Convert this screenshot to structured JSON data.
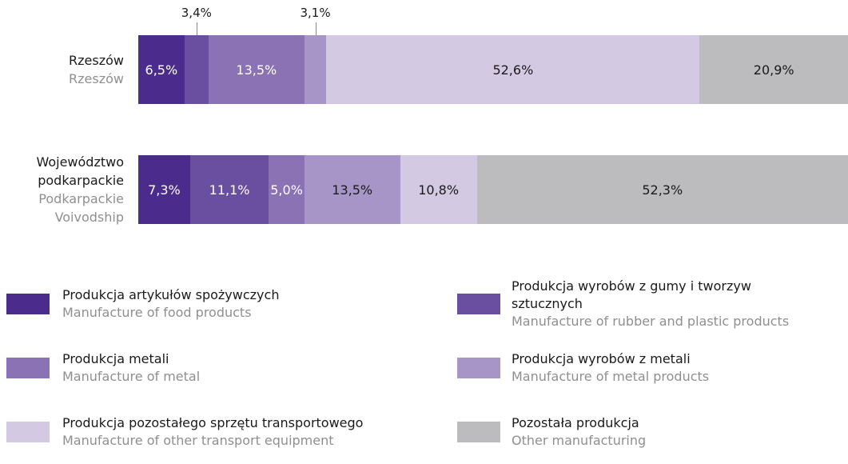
{
  "chart_data": {
    "type": "stacked_bar_horizontal",
    "categories": [
      "Rzeszów",
      "Województwo podkarpackie"
    ],
    "categories_en": [
      "Rzeszów",
      "Podkarpackie Voivodship"
    ],
    "xlim": [
      0,
      100
    ],
    "series": [
      {
        "name": "Produkcja artykułów spożywczych",
        "name_en": "Manufacture of food products",
        "color": "#4b2c8c",
        "values": [
          6.5,
          7.3
        ],
        "value_labels": [
          "6,5%",
          "7,3%"
        ]
      },
      {
        "name": "Produkcja wyrobów z gumy i tworzyw sztucznych",
        "name_en": "Manufacture of rubber and plastic products",
        "color": "#6a4fa0",
        "values": [
          3.4,
          11.1
        ],
        "value_labels": [
          "3,4%",
          "11,1%"
        ]
      },
      {
        "name": "Produkcja metali",
        "name_en": "Manufacture of metal",
        "color": "#8b72b5",
        "values": [
          13.5,
          5.0
        ],
        "value_labels": [
          "13,5%",
          "5,0%"
        ]
      },
      {
        "name": "Produkcja wyrobów z metali",
        "name_en": "Manufacture of metal products",
        "color": "#a795c8",
        "values": [
          3.1,
          13.5
        ],
        "value_labels": [
          "3,1%",
          "13,5%"
        ]
      },
      {
        "name": "Produkcja pozostałego sprzętu transportowego",
        "name_en": "Manufacture of other transport equipment",
        "color": "#d3c9e3",
        "values": [
          52.6,
          10.8
        ],
        "value_labels": [
          "52,6%",
          "10,8%"
        ]
      },
      {
        "name": "Pozostała produkcja",
        "name_en": "Other manufacturing",
        "color": "#bcbcbe",
        "values": [
          20.9,
          52.3
        ],
        "value_labels": [
          "20,9%",
          "52,3%"
        ]
      }
    ]
  }
}
